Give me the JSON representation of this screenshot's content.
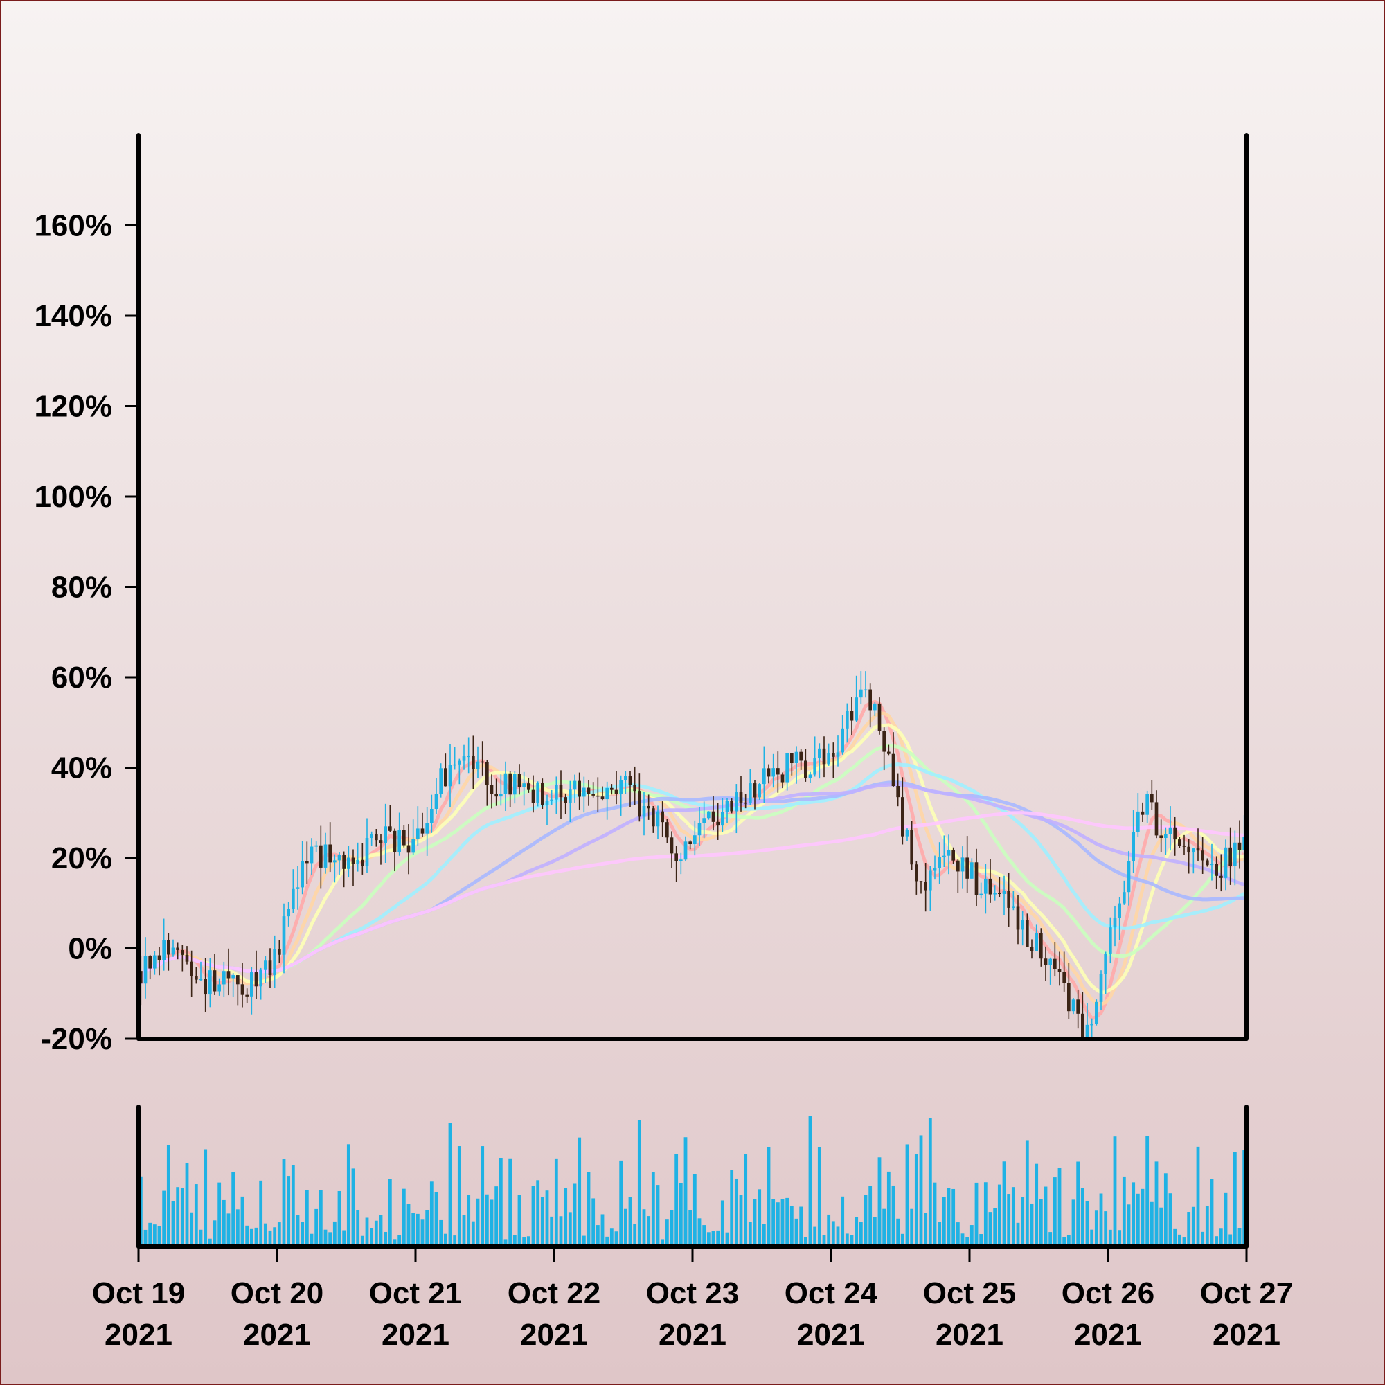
{
  "chart_data": {
    "type": "candlestick",
    "title": "",
    "xlabel": "",
    "ylabel": "",
    "y_axis": {
      "ylim": [
        -20,
        180
      ],
      "ticks": [
        -20,
        0,
        20,
        40,
        60,
        80,
        100,
        120,
        140,
        160
      ],
      "tick_labels": [
        "-20%",
        "0%",
        "20%",
        "40%",
        "60%",
        "80%",
        "100%",
        "120%",
        "140%",
        "160%"
      ],
      "unit": "%"
    },
    "x_axis": {
      "range": [
        "2021-10-19",
        "2021-10-27"
      ],
      "ticks": [
        "2021-10-19",
        "2021-10-20",
        "2021-10-21",
        "2021-10-22",
        "2021-10-23",
        "2021-10-24",
        "2021-10-25",
        "2021-10-26",
        "2021-10-27"
      ],
      "tick_labels": [
        [
          "Oct 19",
          "2021"
        ],
        [
          "Oct 20",
          "2021"
        ],
        [
          "Oct 21",
          "2021"
        ],
        [
          "Oct 22",
          "2021"
        ],
        [
          "Oct 23",
          "2021"
        ],
        [
          "Oct 24",
          "2021"
        ],
        [
          "Oct 25",
          "2021"
        ],
        [
          "Oct 26",
          "2021"
        ],
        [
          "Oct 27",
          "2021"
        ]
      ]
    },
    "close_path": [
      {
        "t": "2021-10-19 00:00",
        "v": -5
      },
      {
        "t": "2021-10-19 06:00",
        "v": 2
      },
      {
        "t": "2021-10-19 12:00",
        "v": -8
      },
      {
        "t": "2021-10-19 21:00",
        "v": -8
      },
      {
        "t": "2021-10-20 00:00",
        "v": 0
      },
      {
        "t": "2021-10-20 06:00",
        "v": 22
      },
      {
        "t": "2021-10-20 12:00",
        "v": 17
      },
      {
        "t": "2021-10-20 18:00",
        "v": 25
      },
      {
        "t": "2021-10-21 00:00",
        "v": 22
      },
      {
        "t": "2021-10-21 06:00",
        "v": 42
      },
      {
        "t": "2021-10-21 15:00",
        "v": 36
      },
      {
        "t": "2021-10-22 00:00",
        "v": 33
      },
      {
        "t": "2021-10-22 12:00",
        "v": 37
      },
      {
        "t": "2021-10-22 21:00",
        "v": 22
      },
      {
        "t": "2021-10-23 06:00",
        "v": 30
      },
      {
        "t": "2021-10-23 15:00",
        "v": 40
      },
      {
        "t": "2021-10-24 00:00",
        "v": 42
      },
      {
        "t": "2021-10-24 06:00",
        "v": 60
      },
      {
        "t": "2021-10-24 15:00",
        "v": 15
      },
      {
        "t": "2021-10-24 21:00",
        "v": 20
      },
      {
        "t": "2021-10-25 06:00",
        "v": 10
      },
      {
        "t": "2021-10-25 15:00",
        "v": -5
      },
      {
        "t": "2021-10-25 21:00",
        "v": -20
      },
      {
        "t": "2021-10-26 00:00",
        "v": 0
      },
      {
        "t": "2021-10-26 06:00",
        "v": 32
      },
      {
        "t": "2021-10-26 12:00",
        "v": 22
      },
      {
        "t": "2021-10-26 18:00",
        "v": 18
      },
      {
        "t": "2021-10-27 00:00",
        "v": 22
      }
    ],
    "candle_colors": {
      "up": "#1fb2e4",
      "down": "#3b2416"
    },
    "moving_averages": {
      "colors": [
        "#ffaaaa",
        "#ffd6a5",
        "#fdffb6",
        "#caffbf",
        "#a0f0ff",
        "#a8b8ff",
        "#c0b0ff",
        "#ffc6ff"
      ],
      "windows": [
        6,
        10,
        14,
        28,
        42,
        64,
        80,
        160
      ]
    },
    "volume": {
      "color": "#1fb2e4",
      "ylim": [
        0,
        1
      ]
    },
    "background_gradient": [
      "#f7f3f2",
      "#dfc6c8"
    ],
    "border_color": "#7a1c1c"
  }
}
